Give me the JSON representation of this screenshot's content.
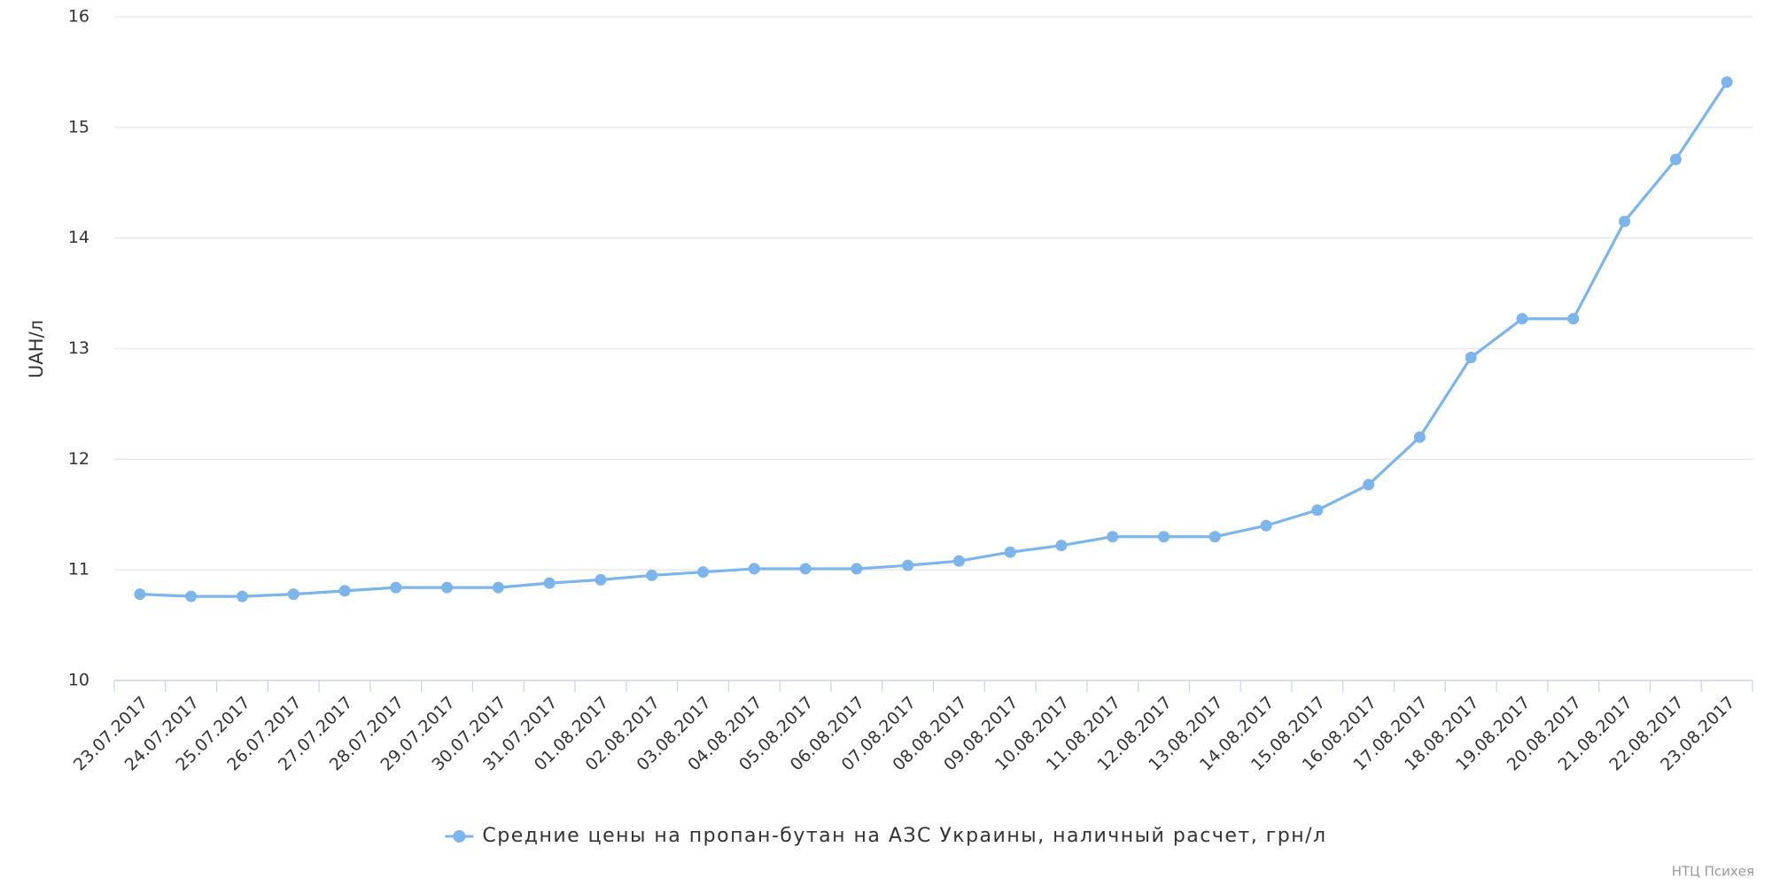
{
  "chart_data": {
    "type": "line",
    "y_label": "UAH/л",
    "categories": [
      "23.07.2017",
      "24.07.2017",
      "25.07.2017",
      "26.07.2017",
      "27.07.2017",
      "28.07.2017",
      "29.07.2017",
      "30.07.2017",
      "31.07.2017",
      "01.08.2017",
      "02.08.2017",
      "03.08.2017",
      "04.08.2017",
      "05.08.2017",
      "06.08.2017",
      "07.08.2017",
      "08.08.2017",
      "09.08.2017",
      "10.08.2017",
      "11.08.2017",
      "12.08.2017",
      "13.08.2017",
      "14.08.2017",
      "15.08.2017",
      "16.08.2017",
      "17.08.2017",
      "18.08.2017",
      "19.08.2017",
      "20.08.2017",
      "21.08.2017",
      "22.08.2017",
      "23.08.2017"
    ],
    "series": [
      {
        "name": "Средние цены на пропан-бутан на АЗС Украины, наличный расчет, грн/л",
        "color": "#7cb5ec",
        "values": [
          10.78,
          10.76,
          10.76,
          10.78,
          10.81,
          10.84,
          10.84,
          10.84,
          10.88,
          10.91,
          10.95,
          10.98,
          11.01,
          11.01,
          11.01,
          11.04,
          11.08,
          11.16,
          11.22,
          11.3,
          11.3,
          11.3,
          11.4,
          11.54,
          11.77,
          12.2,
          12.92,
          13.27,
          13.27,
          14.15,
          14.71,
          15.41
        ]
      }
    ],
    "ylim": [
      10,
      16
    ],
    "yticks": [
      10,
      11,
      12,
      13,
      14,
      15,
      16
    ],
    "grid": true,
    "legend": "bottom",
    "credit": "НТЦ Психея"
  }
}
